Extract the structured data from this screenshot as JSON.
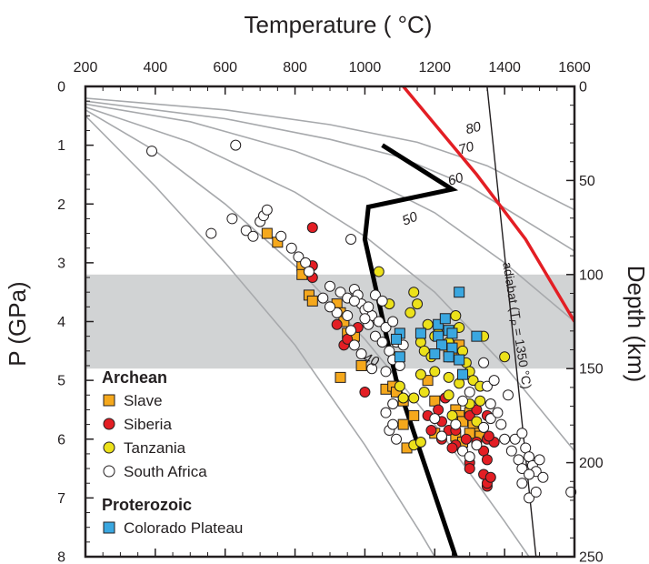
{
  "chart_data": {
    "type": "scatter",
    "title": "",
    "xlabel": "Temperature ( °C)",
    "ylabel": "P (GPa)",
    "ylabel_right": "Depth (km)",
    "xlim": [
      200,
      1600
    ],
    "ylim": [
      0,
      8
    ],
    "y_reversed": true,
    "x_ticks": [
      "200",
      "400",
      "600",
      "800",
      "1000",
      "1200",
      "1400",
      "1600"
    ],
    "y_ticks": [
      "0",
      "1",
      "2",
      "3",
      "4",
      "5",
      "6",
      "7",
      "8"
    ],
    "right_ticks": [
      "0",
      "50",
      "100",
      "150",
      "200",
      "250"
    ],
    "shaded_band": {
      "p_min": 3.2,
      "p_max": 4.8,
      "color": "#d1d3d4"
    },
    "geotherm_labels": [
      "80",
      "70",
      "60",
      "50",
      "40"
    ],
    "geotherms": [
      {
        "name": "80",
        "points": [
          [
            200,
            0.2
          ],
          [
            600,
            0.4
          ],
          [
            900,
            0.65
          ],
          [
            1150,
            0.95
          ],
          [
            1350,
            1.35
          ],
          [
            1600,
            2.1
          ]
        ]
      },
      {
        "name": "70",
        "points": [
          [
            200,
            0.25
          ],
          [
            600,
            0.55
          ],
          [
            900,
            0.9
          ],
          [
            1100,
            1.2
          ],
          [
            1300,
            1.7
          ],
          [
            1600,
            2.8
          ]
        ]
      },
      {
        "name": "60",
        "points": [
          [
            200,
            0.3
          ],
          [
            500,
            0.6
          ],
          [
            800,
            1.1
          ],
          [
            1000,
            1.55
          ],
          [
            1200,
            2.15
          ],
          [
            1400,
            3.0
          ],
          [
            1600,
            4.0
          ]
        ]
      },
      {
        "name": "50",
        "points": [
          [
            200,
            0.35
          ],
          [
            500,
            0.95
          ],
          [
            800,
            1.8
          ],
          [
            1000,
            2.55
          ],
          [
            1200,
            3.5
          ],
          [
            1400,
            4.75
          ],
          [
            1600,
            6.2
          ]
        ]
      },
      {
        "name": "40",
        "points": [
          [
            200,
            0.4
          ],
          [
            400,
            1.1
          ],
          [
            600,
            2.0
          ],
          [
            800,
            3.05
          ],
          [
            1000,
            4.3
          ],
          [
            1200,
            5.75
          ],
          [
            1400,
            7.4
          ],
          [
            1470,
            8.0
          ]
        ]
      },
      {
        "name": "",
        "points": [
          [
            200,
            0.5
          ],
          [
            400,
            1.7
          ],
          [
            600,
            3.0
          ],
          [
            800,
            4.4
          ],
          [
            1000,
            6.1
          ],
          [
            1160,
            7.6
          ],
          [
            1200,
            8.0
          ]
        ]
      }
    ],
    "solidus_black": [
      [
        1050,
        1.0
      ],
      [
        1250,
        1.75
      ],
      [
        1010,
        2.05
      ],
      [
        1000,
        2.6
      ],
      [
        1090,
        5.0
      ],
      [
        1260,
        8.0
      ]
    ],
    "adiabat_line": [
      [
        1350,
        0.0
      ],
      [
        1490,
        8.0
      ]
    ],
    "red_line": [
      [
        1110,
        0.0
      ],
      [
        1320,
        1.5
      ],
      [
        1460,
        2.6
      ],
      [
        1600,
        4.0
      ]
    ],
    "adiabat_label": "adiabat (T",
    "adiabat_label_sub": "P",
    "adiabat_label_end": " = 1350 °C)",
    "legend": {
      "archean_title": "Archean",
      "proterozoic_title": "Proterozoic",
      "items": [
        {
          "name": "Slave",
          "marker": "square",
          "color": "#f5a81c"
        },
        {
          "name": "Siberia",
          "marker": "circle",
          "color": "#e31e24"
        },
        {
          "name": "Tanzania",
          "marker": "circle",
          "color": "#ece11a"
        },
        {
          "name": "South Africa",
          "marker": "circle",
          "color": "#ffffff"
        },
        {
          "name": "Colorado Plateau",
          "marker": "square",
          "color": "#3aa7e0"
        }
      ]
    },
    "series": [
      {
        "name": "Slave",
        "marker": "square",
        "color": "#f5a81c",
        "points": [
          [
            720,
            2.5
          ],
          [
            750,
            2.65
          ],
          [
            820,
            3.05
          ],
          [
            820,
            3.2
          ],
          [
            840,
            3.55
          ],
          [
            850,
            3.65
          ],
          [
            920,
            3.7
          ],
          [
            930,
            3.85
          ],
          [
            940,
            4.0
          ],
          [
            950,
            4.2
          ],
          [
            970,
            4.25
          ],
          [
            990,
            4.75
          ],
          [
            930,
            4.95
          ],
          [
            1060,
            5.15
          ],
          [
            1080,
            5.1
          ],
          [
            1090,
            5.2
          ],
          [
            1110,
            5.35
          ],
          [
            1200,
            5.35
          ],
          [
            1260,
            5.5
          ],
          [
            1270,
            5.6
          ],
          [
            1280,
            5.7
          ],
          [
            1300,
            5.55
          ],
          [
            1310,
            5.75
          ],
          [
            1320,
            5.9
          ],
          [
            1260,
            5.95
          ],
          [
            1280,
            6.05
          ],
          [
            1300,
            5.9
          ],
          [
            1330,
            5.95
          ],
          [
            1240,
            4.5
          ],
          [
            1250,
            4.6
          ],
          [
            1270,
            4.4
          ],
          [
            1180,
            5.0
          ],
          [
            1140,
            5.6
          ],
          [
            1110,
            5.75
          ],
          [
            1120,
            6.15
          ],
          [
            1200,
            5.9
          ]
        ]
      },
      {
        "name": "Siberia",
        "marker": "circle",
        "color": "#e31e24",
        "points": [
          [
            850,
            2.4
          ],
          [
            850,
            3.05
          ],
          [
            850,
            3.25
          ],
          [
            920,
            4.05
          ],
          [
            940,
            4.4
          ],
          [
            950,
            4.3
          ],
          [
            980,
            4.1
          ],
          [
            1000,
            5.2
          ],
          [
            1210,
            5.5
          ],
          [
            1220,
            5.7
          ],
          [
            1240,
            5.85
          ],
          [
            1260,
            6.1
          ],
          [
            1290,
            6.0
          ],
          [
            1300,
            5.6
          ],
          [
            1320,
            5.5
          ],
          [
            1340,
            5.8
          ],
          [
            1350,
            6.0
          ],
          [
            1370,
            6.05
          ],
          [
            1300,
            6.4
          ],
          [
            1300,
            6.5
          ],
          [
            1340,
            6.2
          ],
          [
            1350,
            6.35
          ],
          [
            1350,
            6.8
          ],
          [
            1350,
            6.75
          ],
          [
            1220,
            6.0
          ],
          [
            1250,
            6.15
          ],
          [
            1190,
            5.85
          ],
          [
            1320,
            6.05
          ],
          [
            1350,
            5.6
          ],
          [
            1355,
            5.95
          ],
          [
            1340,
            6.6
          ],
          [
            1360,
            6.65
          ],
          [
            1180,
            5.6
          ],
          [
            1230,
            5.3
          ],
          [
            1260,
            5.85
          ]
        ]
      },
      {
        "name": "Tanzania",
        "marker": "circle",
        "color": "#ece11a",
        "points": [
          [
            1040,
            3.15
          ],
          [
            1070,
            3.7
          ],
          [
            1140,
            3.5
          ],
          [
            1150,
            3.7
          ],
          [
            1130,
            3.85
          ],
          [
            1180,
            4.05
          ],
          [
            1200,
            4.25
          ],
          [
            1160,
            4.35
          ],
          [
            1170,
            4.5
          ],
          [
            1190,
            4.6
          ],
          [
            1210,
            4.2
          ],
          [
            1220,
            4.4
          ],
          [
            1240,
            4.35
          ],
          [
            1260,
            3.9
          ],
          [
            1270,
            4.1
          ],
          [
            1280,
            4.5
          ],
          [
            1290,
            4.7
          ],
          [
            1300,
            4.85
          ],
          [
            1240,
            4.95
          ],
          [
            1270,
            5.05
          ],
          [
            1200,
            4.85
          ],
          [
            1160,
            4.9
          ],
          [
            1090,
            4.6
          ],
          [
            1100,
            5.1
          ],
          [
            1140,
            5.3
          ],
          [
            1110,
            5.3
          ],
          [
            1170,
            5.2
          ],
          [
            1240,
            5.25
          ],
          [
            1310,
            5.0
          ],
          [
            1330,
            5.1
          ],
          [
            1300,
            5.4
          ],
          [
            1340,
            4.25
          ],
          [
            1400,
            4.6
          ],
          [
            1140,
            6.1
          ],
          [
            1160,
            6.05
          ],
          [
            1250,
            5.6
          ],
          [
            1320,
            5.7
          ],
          [
            1330,
            5.35
          ]
        ]
      },
      {
        "name": "South Africa",
        "marker": "circle",
        "color": "#ffffff",
        "points": [
          [
            390,
            1.1
          ],
          [
            630,
            1.0
          ],
          [
            560,
            2.5
          ],
          [
            620,
            2.25
          ],
          [
            660,
            2.45
          ],
          [
            680,
            2.55
          ],
          [
            700,
            2.3
          ],
          [
            710,
            2.2
          ],
          [
            720,
            2.1
          ],
          [
            760,
            2.55
          ],
          [
            790,
            2.75
          ],
          [
            810,
            2.9
          ],
          [
            830,
            3.0
          ],
          [
            840,
            3.15
          ],
          [
            960,
            2.6
          ],
          [
            900,
            3.4
          ],
          [
            930,
            3.5
          ],
          [
            950,
            3.6
          ],
          [
            970,
            3.45
          ],
          [
            980,
            3.55
          ],
          [
            990,
            3.7
          ],
          [
            1000,
            3.8
          ],
          [
            1020,
            3.9
          ],
          [
            1010,
            4.05
          ],
          [
            1040,
            4.0
          ],
          [
            1060,
            4.1
          ],
          [
            1030,
            4.25
          ],
          [
            1050,
            4.35
          ],
          [
            1070,
            4.5
          ],
          [
            1080,
            4.65
          ],
          [
            1100,
            4.75
          ],
          [
            1060,
            4.85
          ],
          [
            1020,
            4.8
          ],
          [
            990,
            4.55
          ],
          [
            970,
            4.4
          ],
          [
            960,
            4.15
          ],
          [
            920,
            3.85
          ],
          [
            900,
            3.75
          ],
          [
            880,
            3.6
          ],
          [
            1080,
            5.4
          ],
          [
            1060,
            5.55
          ],
          [
            1070,
            5.85
          ],
          [
            1090,
            6.0
          ],
          [
            1080,
            5.75
          ],
          [
            1200,
            5.65
          ],
          [
            1220,
            5.95
          ],
          [
            1260,
            5.75
          ],
          [
            1280,
            6.2
          ],
          [
            1300,
            6.3
          ],
          [
            1320,
            6.1
          ],
          [
            1340,
            5.8
          ],
          [
            1360,
            5.65
          ],
          [
            1380,
            5.55
          ],
          [
            1390,
            5.75
          ],
          [
            1400,
            6.0
          ],
          [
            1420,
            6.2
          ],
          [
            1440,
            6.35
          ],
          [
            1450,
            6.5
          ],
          [
            1460,
            6.15
          ],
          [
            1470,
            6.3
          ],
          [
            1480,
            6.45
          ],
          [
            1490,
            6.55
          ],
          [
            1500,
            6.35
          ],
          [
            1510,
            6.65
          ],
          [
            1450,
            6.75
          ],
          [
            1470,
            7.0
          ],
          [
            1490,
            6.9
          ],
          [
            1430,
            6.0
          ],
          [
            1350,
            5.1
          ],
          [
            1360,
            5.4
          ],
          [
            1370,
            5.0
          ],
          [
            1340,
            4.7
          ],
          [
            1300,
            5.2
          ],
          [
            1280,
            5.35
          ],
          [
            1590,
            6.9
          ],
          [
            1410,
            5.25
          ],
          [
            1450,
            5.9
          ],
          [
            1470,
            6.6
          ],
          [
            1090,
            4.35
          ],
          [
            1110,
            4.4
          ],
          [
            1000,
            3.95
          ],
          [
            1010,
            3.75
          ],
          [
            970,
            3.65
          ],
          [
            950,
            3.9
          ],
          [
            1030,
            3.55
          ],
          [
            1050,
            3.65
          ],
          [
            1080,
            4.0
          ]
        ]
      },
      {
        "name": "Colorado Plateau",
        "marker": "square",
        "color": "#3aa7e0",
        "points": [
          [
            1270,
            3.5
          ],
          [
            1210,
            4.05
          ],
          [
            1230,
            3.95
          ],
          [
            1240,
            4.15
          ],
          [
            1210,
            4.25
          ],
          [
            1220,
            4.4
          ],
          [
            1200,
            4.55
          ],
          [
            1250,
            4.2
          ],
          [
            1250,
            4.45
          ],
          [
            1160,
            4.2
          ],
          [
            1320,
            4.25
          ],
          [
            1280,
            4.9
          ],
          [
            1270,
            4.65
          ],
          [
            1100,
            4.6
          ],
          [
            1100,
            4.2
          ],
          [
            1090,
            4.3
          ],
          [
            1240,
            4.6
          ]
        ]
      }
    ]
  }
}
